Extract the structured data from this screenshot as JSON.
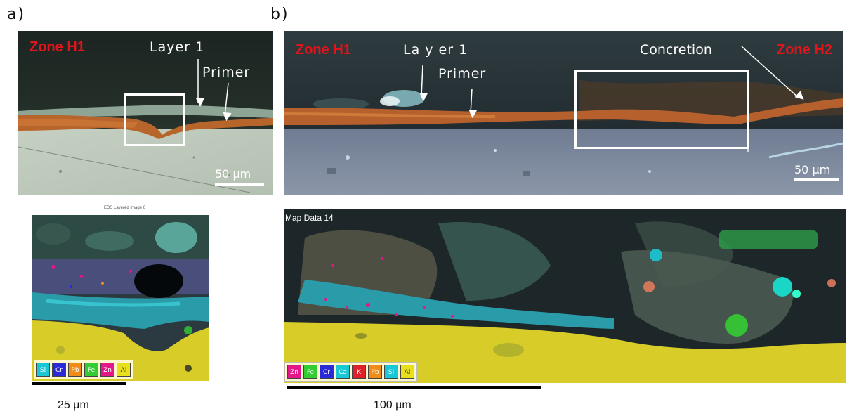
{
  "panel_a": {
    "letter": "a)",
    "zone_label": "Zone H1",
    "layer_label": "Layer 1",
    "primer_label": "Primer",
    "scale_label": "50 µm",
    "map_title": "EDS Layered Image 6",
    "legend": [
      {
        "label": "Si",
        "color": "#19c7d6"
      },
      {
        "label": "Cr",
        "color": "#2a2ad8"
      },
      {
        "label": "Pb",
        "color": "#f08c1a"
      },
      {
        "label": "Fe",
        "color": "#33cc33"
      },
      {
        "label": "Zn",
        "color": "#e5158a"
      },
      {
        "label": "Al",
        "color": "#e8e01a"
      }
    ],
    "map_scale_label": "25 µm"
  },
  "panel_b": {
    "letter": "b)",
    "zone_left_label": "Zone H1",
    "zone_right_label": "Zone H2",
    "layer_label": "La y er 1",
    "primer_label": "Primer",
    "concretion_label": "Concretion",
    "scale_label": "50 µm",
    "map_title": "Map Data 14",
    "legend": [
      {
        "label": "Zn",
        "color": "#e5158a"
      },
      {
        "label": "Fe",
        "color": "#33cc33"
      },
      {
        "label": "Cr",
        "color": "#2a2ad8"
      },
      {
        "label": "Ca",
        "color": "#19c7d6"
      },
      {
        "label": "K",
        "color": "#e0202a"
      },
      {
        "label": "Pb",
        "color": "#f08c1a"
      },
      {
        "label": "Si",
        "color": "#19c7d6"
      },
      {
        "label": "Al",
        "color": "#e8e01a"
      }
    ],
    "map_scale_label": "100 µm"
  }
}
